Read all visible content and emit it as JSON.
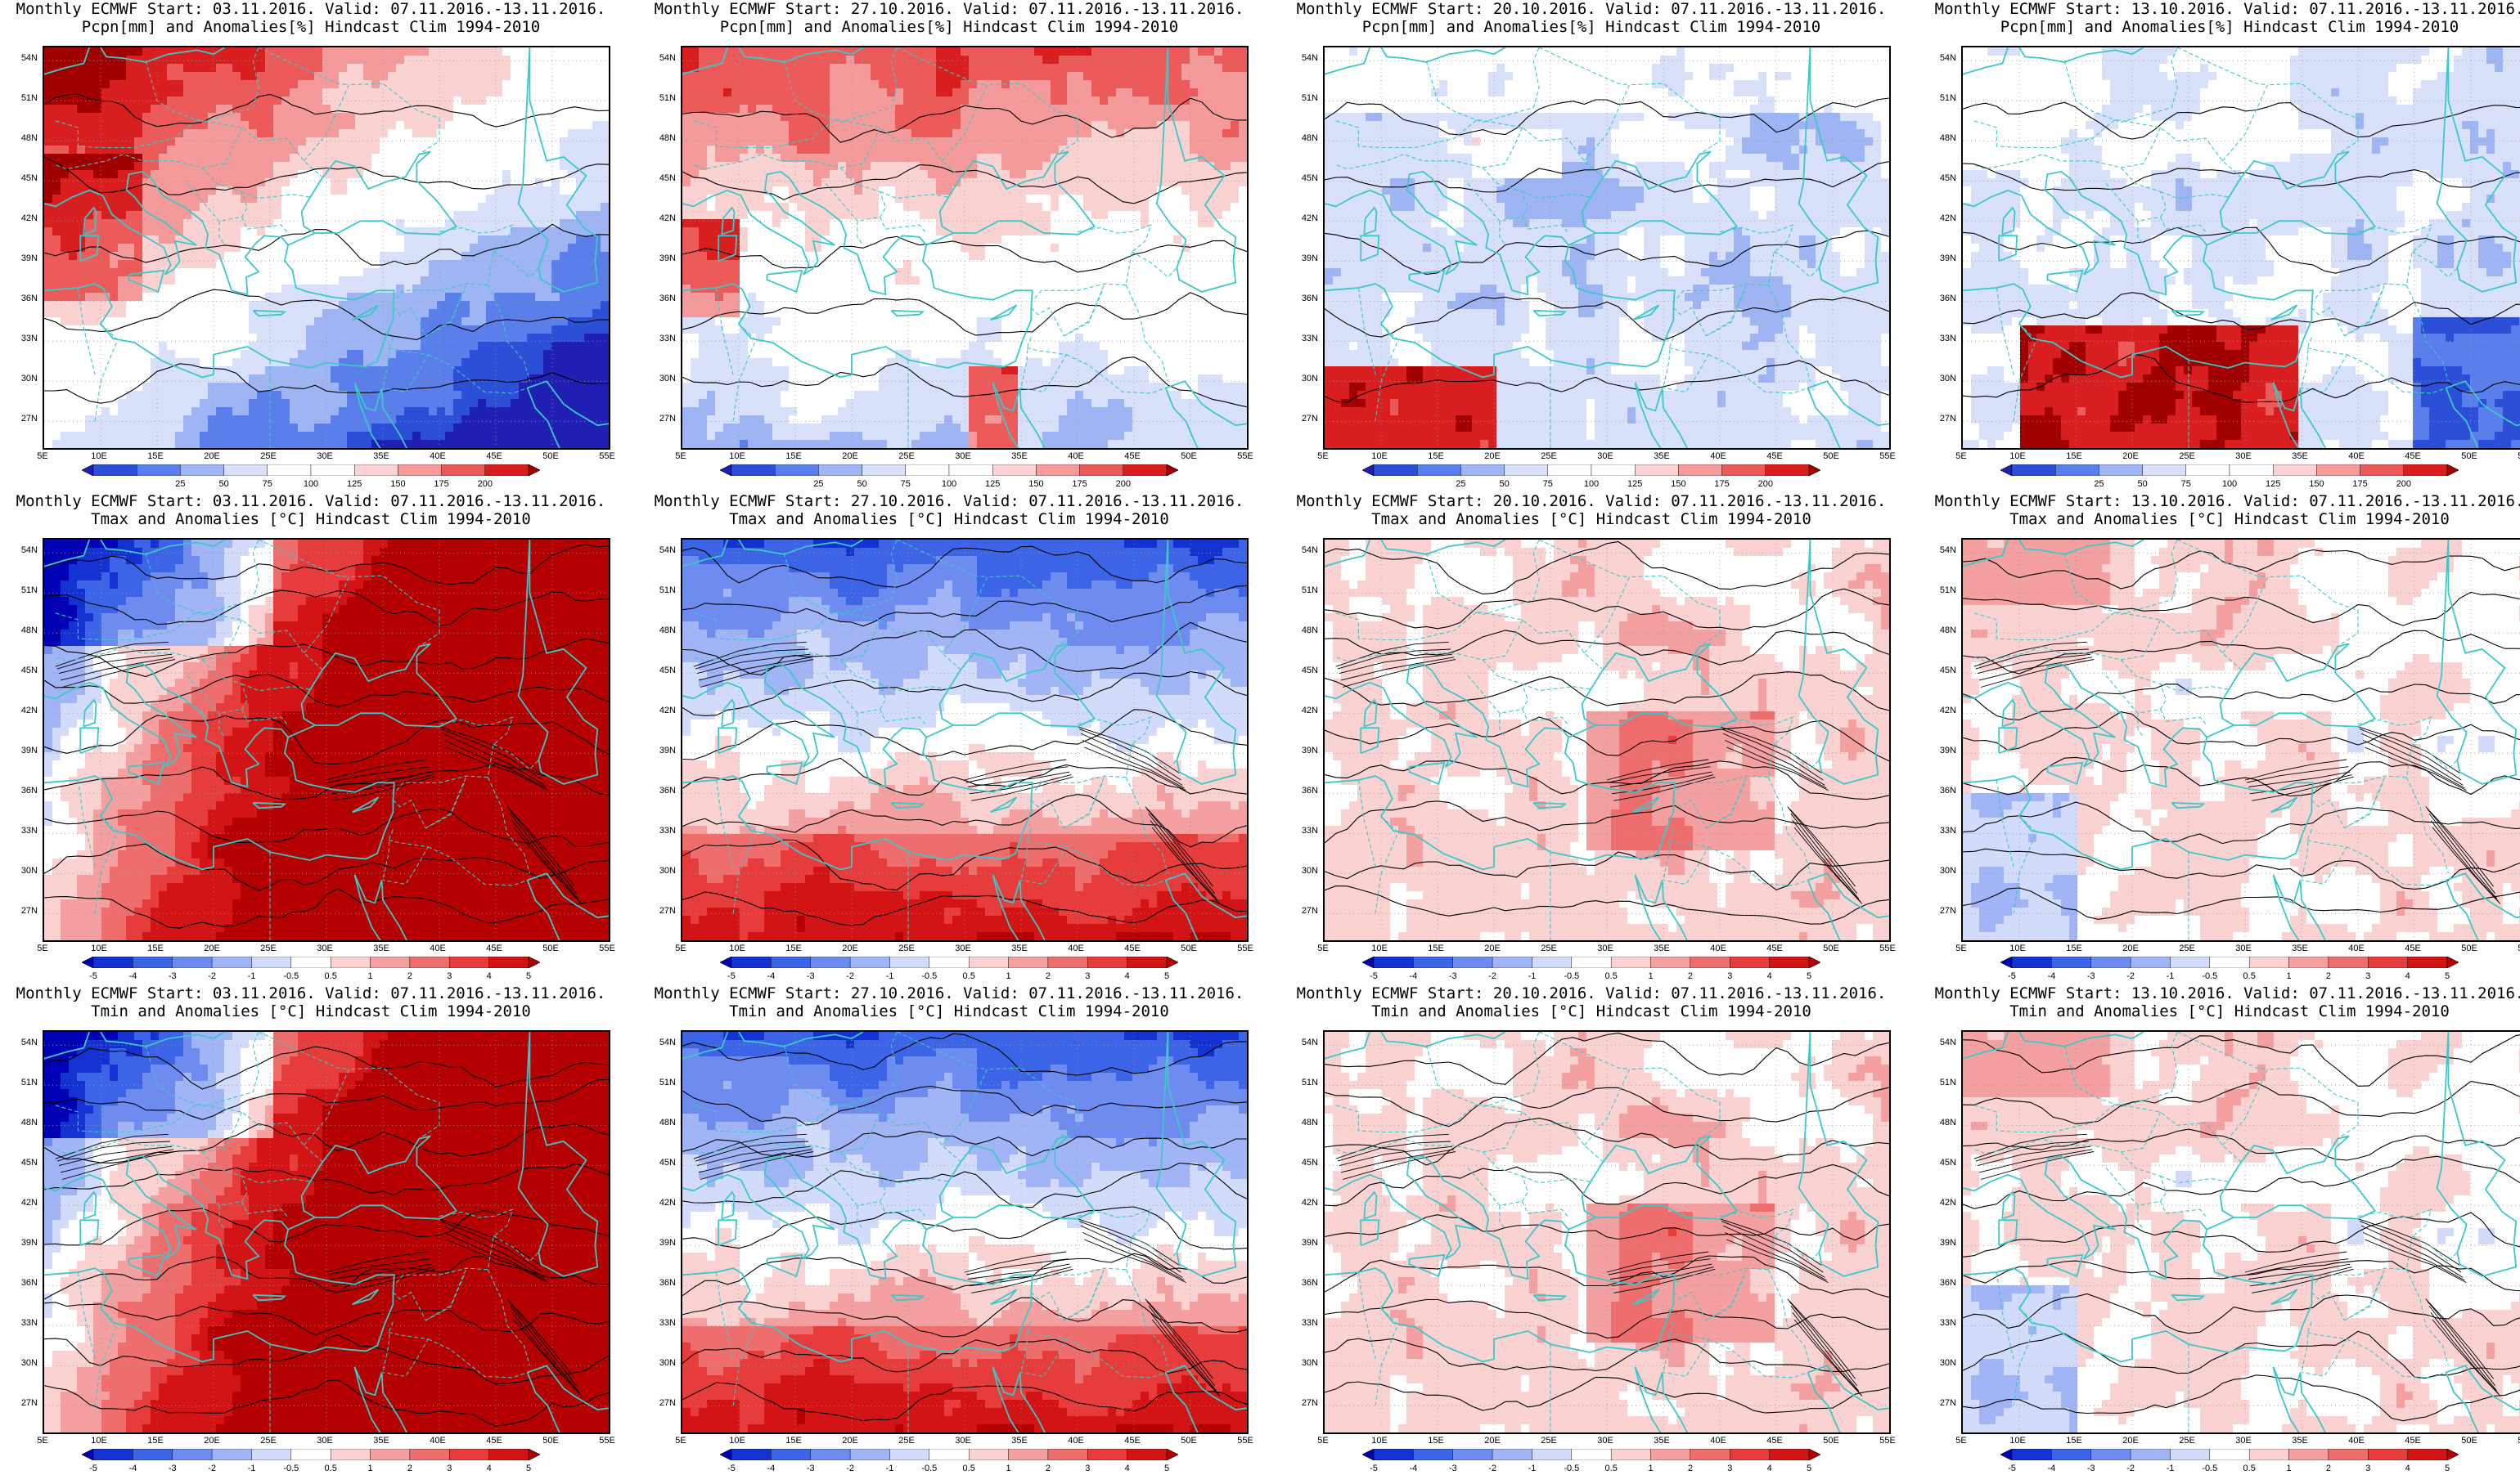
{
  "panels": [
    {
      "line1": "Monthly ECMWF Start: 03.11.2016. Valid: 07.11.2016.-13.11.2016.",
      "line2": "Pcpn[mm] and Anomalies[%] Hindcast Clim 1994-2010",
      "kind": "pcpn",
      "style": "p1"
    },
    {
      "line1": "Monthly ECMWF Start: 27.10.2016. Valid: 07.11.2016.-13.11.2016.",
      "line2": "Pcpn[mm] and Anomalies[%] Hindcast Clim 1994-2010",
      "kind": "pcpn",
      "style": "p2"
    },
    {
      "line1": "Monthly ECMWF Start: 20.10.2016. Valid: 07.11.2016.-13.11.2016.",
      "line2": "Pcpn[mm] and Anomalies[%] Hindcast Clim 1994-2010",
      "kind": "pcpn",
      "style": "p3"
    },
    {
      "line1": "Monthly ECMWF Start: 13.10.2016. Valid: 07.11.2016.-13.11.2016.",
      "line2": "Pcpn[mm] and Anomalies[%] Hindcast Clim 1994-2010",
      "kind": "pcpn",
      "style": "p4"
    },
    {
      "line1": "Monthly ECMWF Start: 03.11.2016. Valid: 07.11.2016.-13.11.2016.",
      "line2": "Tmax and Anomalies [°C] Hindcast Clim 1994-2010",
      "kind": "temp",
      "style": "t1"
    },
    {
      "line1": "Monthly ECMWF Start: 27.10.2016. Valid: 07.11.2016.-13.11.2016.",
      "line2": "Tmax and Anomalies [°C] Hindcast Clim 1994-2010",
      "kind": "temp",
      "style": "t2"
    },
    {
      "line1": "Monthly ECMWF Start: 20.10.2016. Valid: 07.11.2016.-13.11.2016.",
      "line2": "Tmax and Anomalies [°C] Hindcast Clim 1994-2010",
      "kind": "temp",
      "style": "t3"
    },
    {
      "line1": "Monthly ECMWF Start: 13.10.2016. Valid: 07.11.2016.-13.11.2016.",
      "line2": "Tmax and Anomalies [°C] Hindcast Clim 1994-2010",
      "kind": "temp",
      "style": "t4"
    },
    {
      "line1": "Monthly ECMWF Start: 03.11.2016. Valid: 07.11.2016.-13.11.2016.",
      "line2": "Tmin and Anomalies [°C] Hindcast Clim 1994-2010",
      "kind": "temp",
      "style": "t1"
    },
    {
      "line1": "Monthly ECMWF Start: 27.10.2016. Valid: 07.11.2016.-13.11.2016.",
      "line2": "Tmin and Anomalies [°C] Hindcast Clim 1994-2010",
      "kind": "temp",
      "style": "t2"
    },
    {
      "line1": "Monthly ECMWF Start: 20.10.2016. Valid: 07.11.2016.-13.11.2016.",
      "line2": "Tmin and Anomalies [°C] Hindcast Clim 1994-2010",
      "kind": "temp",
      "style": "t3"
    },
    {
      "line1": "Monthly ECMWF Start: 13.10.2016. Valid: 07.11.2016.-13.11.2016.",
      "line2": "Tmin and Anomalies [°C] Hindcast Clim 1994-2010",
      "kind": "temp",
      "style": "t4"
    }
  ],
  "lat_labels": [
    "54N",
    "51N",
    "48N",
    "45N",
    "42N",
    "39N",
    "36N",
    "33N",
    "30N",
    "27N"
  ],
  "lon_labels": [
    "5E",
    "10E",
    "15E",
    "20E",
    "25E",
    "30E",
    "35E",
    "40E",
    "45E",
    "50E",
    "55E"
  ],
  "pcpn_scale": {
    "labels": [
      "25",
      "50",
      "75",
      "100",
      "125",
      "150",
      "175",
      "200"
    ],
    "colors": [
      "#1f1fb4",
      "#2b4fd6",
      "#5b7fea",
      "#9fb4f2",
      "#d8e0fa",
      "#ffffff",
      "#ffffff",
      "#fad2d2",
      "#f59a9a",
      "#ec5a5a",
      "#d81e1e",
      "#a00000"
    ]
  },
  "temp_scale": {
    "labels": [
      "-5",
      "-4",
      "-3",
      "-2",
      "-1",
      "-0.5",
      "0.5",
      "1",
      "2",
      "3",
      "4",
      "5"
    ],
    "colors": [
      "#0000b4",
      "#1432d2",
      "#3c64e6",
      "#6e8cf0",
      "#a0b4f6",
      "#d2dcfa",
      "#ffffff",
      "#fad2d2",
      "#f5a0a0",
      "#ee6e6e",
      "#e63c3c",
      "#d21414",
      "#b40000"
    ]
  },
  "colors": {
    "coast": "#3cc8c8",
    "contour": "#000000",
    "grid": "#9a9a9a"
  }
}
